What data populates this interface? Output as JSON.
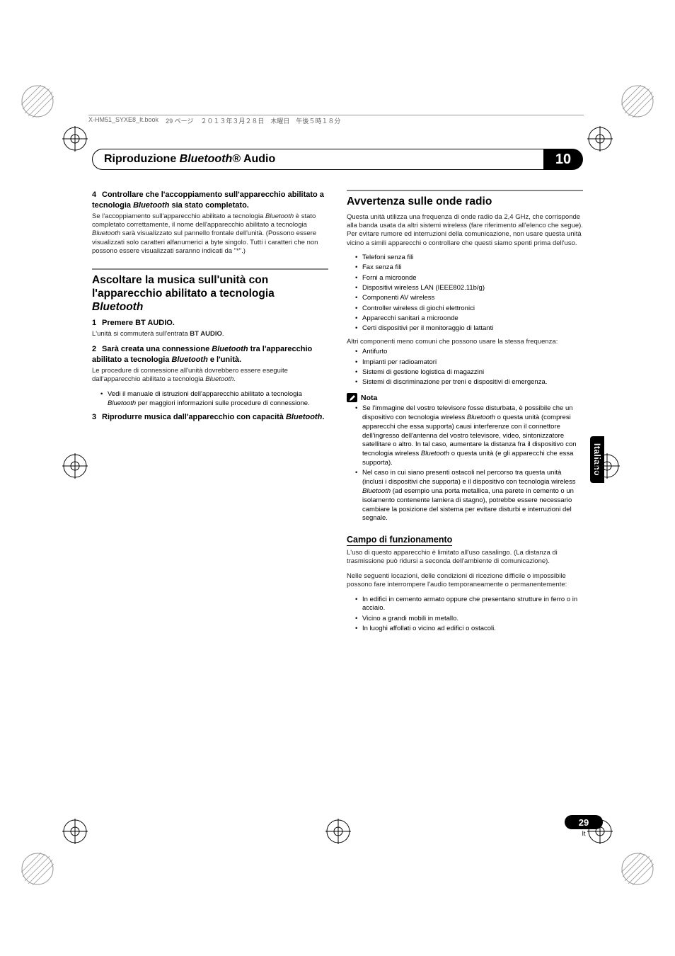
{
  "print_header": {
    "file": "X-HM51_SYXE8_It.book",
    "page_jp": "29 ページ",
    "date_jp": "２０１３年３月２８日　木曜日　午後５時１８分"
  },
  "chapter": {
    "title_pre": "Riproduzione ",
    "title_bt": "Bluetooth",
    "title_post": "® Audio",
    "number": "10"
  },
  "left": {
    "step4_num": "4",
    "step4_title_a": "Controllare che l'accoppiamento sull'apparecchio abilitato a tecnologia ",
    "step4_title_bt": "Bluetooth",
    "step4_title_b": " sia stato completato.",
    "step4_body_a": "Se l'accoppiamento sull'apparecchio abilitato a tecnologia ",
    "step4_body_bt1": "Bluetooth",
    "step4_body_b": " è stato completato correttamente, il nome dell'apparecchio abilitato a tecnologia ",
    "step4_body_bt2": "Bluetooth",
    "step4_body_c": " sarà visualizzato sul pannello frontale dell'unità. (Possono essere visualizzati solo caratteri alfanumerici a byte singolo. Tutti i caratteri che non possono essere visualizzati saranno indicati da \"*\".)",
    "h1_a": "Ascoltare la musica sull'unità con l'apparecchio abilitato a tecnologia ",
    "h1_bt": "Bluetooth",
    "s1_num": "1",
    "s1_title": "Premere BT AUDIO.",
    "s1_body_a": "L'unità si commuterà sull'entrata ",
    "s1_body_b": "BT AUDIO",
    "s1_body_c": ".",
    "s2_num": "2",
    "s2_title_a": "Sarà creata una connessione ",
    "s2_title_bt1": "Bluetooth",
    "s2_title_b": " tra l'apparecchio abilitato a tecnologia ",
    "s2_title_bt2": "Bluetooth",
    "s2_title_c": " e l'unità.",
    "s2_body_a": "Le procedure di connessione all'unità dovrebbero essere eseguite dall'apparecchio abilitato a tecnologia ",
    "s2_body_bt": "Bluetooth",
    "s2_body_b": ".",
    "s2_bullet_a": "Vedi il manuale di istruzioni dell'apparecchio abilitato a tecnologia ",
    "s2_bullet_bt": "Bluetooth",
    "s2_bullet_b": " per maggiori informazioni sulle procedure di connessione.",
    "s3_num": "3",
    "s3_title_a": "Riprodurre musica dall'apparecchio con capacità ",
    "s3_title_bt": "Bluetooth",
    "s3_title_b": "."
  },
  "right": {
    "h1": "Avvertenza sulle onde radio",
    "intro": "Questa unità utilizza una frequenza di onde radio da 2,4 GHz, che corrisponde alla banda usata da altri sistemi wireless (fare riferimento all'elenco che segue). Per evitare rumore ed interruzioni della comunicazione, non usare questa unità vicino a simili apparecchi o controllare che questi siamo spenti prima dell'uso.",
    "list1": [
      "Telefoni senza fili",
      "Fax senza fili",
      "Forni a microonde",
      "Dispositivi wireless LAN (IEEE802.11b/g)",
      "Componenti AV wireless",
      "Controller wireless di giochi elettronici",
      "Apparecchi sanitari a microonde",
      "Certi dispositivi per il monitoraggio di lattanti"
    ],
    "mid": "Altri componenti meno comuni che possono usare la stessa frequenza:",
    "list2": [
      "Antifurto",
      "Impianti per radioamatori",
      "Sistemi di gestione logistica di magazzini",
      "Sistemi di discriminazione per treni e dispositivi di emergenza."
    ],
    "nota_label": "Nota",
    "nota1_a": "Se l'immagine del vostro televisore fosse disturbata, è possibile che un dispositivo con tecnologia wireless ",
    "nota1_bt1": "Bluetooth",
    "nota1_b": " o questa unità (compresi apparecchi che essa supporta) causi interferenze con il connettore dell'ingresso dell'antenna del vostro televisore, video, sintonizzatore satellitare o altro. In tal caso, aumentare la distanza fra il dispositivo con tecnologia wireless ",
    "nota1_bt2": "Bluetooth",
    "nota1_c": " o questa unità (e gli apparecchi che essa supporta).",
    "nota2_a": "Nel caso in cui siano presenti ostacoli nel percorso tra questa unità (inclusi i dispositivi che supporta) e il dispositivo con tecnologia wireless ",
    "nota2_bt": "Bluetooth",
    "nota2_b": " (ad esempio una porta metallica, una parete in cemento o un isolamento contenente lamiera di stagno), potrebbe essere necessario cambiare la posizione del sistema per evitare disturbi e interruzioni del segnale.",
    "h2": "Campo di funzionamento",
    "campo_p1": "L'uso di questo apparecchio è limitato all'uso casalingo. (La distanza di trasmissione può ridursi a seconda dell'ambiente di comunicazione).",
    "campo_p2": "Nelle seguenti locazioni, delle condizioni di ricezione difficile o impossibile possono fare interrompere l'audio temporaneamente o permanentemente:",
    "campo_list": [
      "In edifici in cemento armato oppure che presentano strutture in ferro o in acciaio.",
      "Vicino a grandi mobili in metallo.",
      "In luoghi affollati o vicino ad edifici o ostacoli."
    ]
  },
  "side_tab": "Italiano",
  "page_number": "29",
  "page_lang": "It",
  "colors": {
    "black": "#000000",
    "grey_rule": "#888888",
    "text": "#222222"
  }
}
